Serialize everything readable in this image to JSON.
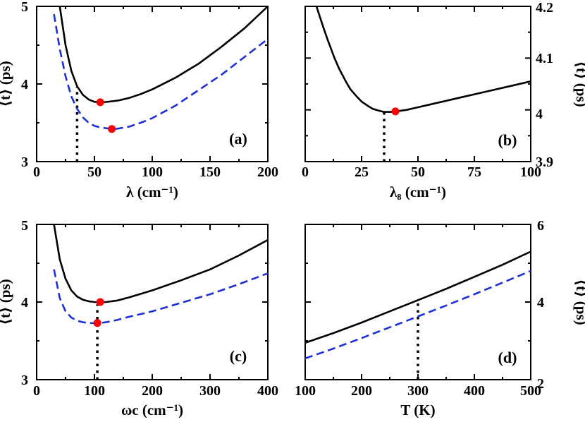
{
  "chart_data": [
    {
      "id": "a",
      "type": "line",
      "panel_label": "(a)",
      "xlabel": "λ (cm⁻¹)",
      "ylabel": "⟨t⟩ (ps)",
      "xlim": [
        0,
        200
      ],
      "ylim": [
        3,
        5
      ],
      "y_axis_side": "left",
      "x_ticks": [
        0,
        50,
        100,
        150,
        200
      ],
      "y_ticks": [
        3,
        4,
        5
      ],
      "x_tick_labels": [
        "0",
        "50",
        "100",
        "150",
        "200"
      ],
      "y_tick_labels": [
        "3",
        "4",
        "5"
      ],
      "series": [
        {
          "name": "solid",
          "color": "#000000",
          "style": "solid",
          "x": [
            20,
            25,
            30,
            35,
            40,
            45,
            50,
            55,
            60,
            70,
            80,
            90,
            100,
            120,
            140,
            160,
            180,
            200
          ],
          "y": [
            5.0,
            4.5,
            4.17,
            3.97,
            3.86,
            3.8,
            3.77,
            3.765,
            3.768,
            3.785,
            3.82,
            3.87,
            3.93,
            4.08,
            4.26,
            4.48,
            4.72,
            5.0
          ]
        },
        {
          "name": "dashed",
          "color": "#1f2fd6",
          "style": "dashed",
          "x": [
            15,
            20,
            25,
            30,
            35,
            40,
            45,
            50,
            55,
            60,
            65,
            70,
            80,
            90,
            100,
            120,
            140,
            160,
            180,
            200
          ],
          "y": [
            4.9,
            4.45,
            4.1,
            3.84,
            3.68,
            3.57,
            3.5,
            3.46,
            3.44,
            3.43,
            3.42,
            3.425,
            3.45,
            3.5,
            3.56,
            3.72,
            3.92,
            4.12,
            4.35,
            4.58
          ]
        }
      ],
      "markers": [
        {
          "x": 55,
          "y": 3.765,
          "color": "#ff0000"
        },
        {
          "x": 65,
          "y": 3.42,
          "color": "#ff0000"
        }
      ],
      "vlines": [
        {
          "x": 35,
          "y_from": 3.0,
          "y_to": 3.96
        }
      ]
    },
    {
      "id": "b",
      "type": "line",
      "panel_label": "(b)",
      "xlabel": "λ₈ (cm⁻¹)",
      "ylabel": "⟨t⟩ (ps)",
      "xlim": [
        0,
        100
      ],
      "ylim": [
        3.9,
        4.2
      ],
      "y_axis_side": "right",
      "x_ticks": [
        0,
        25,
        50,
        75,
        100
      ],
      "y_ticks": [
        3.9,
        4.0,
        4.1,
        4.2
      ],
      "x_tick_labels": [
        "0",
        "25",
        "50",
        "75",
        "100"
      ],
      "y_tick_labels": [
        "3.9",
        "4",
        "4.1",
        "4.2"
      ],
      "series": [
        {
          "name": "solid",
          "color": "#000000",
          "style": "solid",
          "x": [
            5,
            8,
            10,
            13,
            15,
            18,
            20,
            23,
            25,
            28,
            30,
            33,
            35,
            38,
            40,
            45,
            50,
            60,
            70,
            80,
            90,
            100
          ],
          "y": [
            4.2,
            4.16,
            4.135,
            4.1,
            4.08,
            4.055,
            4.04,
            4.025,
            4.016,
            4.007,
            4.002,
            3.998,
            3.996,
            3.996,
            3.997,
            4.0,
            4.005,
            4.015,
            4.025,
            4.035,
            4.045,
            4.055
          ]
        }
      ],
      "markers": [
        {
          "x": 40,
          "y": 3.997,
          "color": "#ff0000"
        }
      ],
      "vlines": [
        {
          "x": 35,
          "y_from": 3.9,
          "y_to": 3.995
        }
      ]
    },
    {
      "id": "c",
      "type": "line",
      "panel_label": "(c)",
      "xlabel": "ωc (cm⁻¹)",
      "ylabel": "⟨t⟩ (ps)",
      "xlim": [
        0,
        400
      ],
      "ylim": [
        3,
        5
      ],
      "y_axis_side": "left",
      "x_ticks": [
        0,
        100,
        200,
        300,
        400
      ],
      "y_ticks": [
        3,
        4,
        5
      ],
      "x_tick_labels": [
        "0",
        "100",
        "200",
        "300",
        "400"
      ],
      "y_tick_labels": [
        "3",
        "4",
        "5"
      ],
      "series": [
        {
          "name": "solid",
          "color": "#000000",
          "style": "solid",
          "x": [
            30,
            40,
            50,
            60,
            70,
            80,
            90,
            100,
            110,
            120,
            140,
            160,
            200,
            250,
            300,
            350,
            400
          ],
          "y": [
            5.0,
            4.55,
            4.3,
            4.15,
            4.07,
            4.03,
            4.01,
            4.0,
            3.995,
            4.0,
            4.02,
            4.06,
            4.15,
            4.28,
            4.42,
            4.6,
            4.8
          ]
        },
        {
          "name": "dashed",
          "color": "#1f2fd6",
          "style": "dashed",
          "x": [
            30,
            40,
            50,
            60,
            70,
            80,
            90,
            100,
            110,
            120,
            140,
            160,
            200,
            250,
            300,
            350,
            400
          ],
          "y": [
            4.42,
            4.05,
            3.88,
            3.8,
            3.76,
            3.74,
            3.73,
            3.728,
            3.73,
            3.74,
            3.77,
            3.81,
            3.88,
            3.99,
            4.1,
            4.23,
            4.37
          ]
        }
      ],
      "markers": [
        {
          "x": 110,
          "y": 4.0,
          "color": "#ff0000"
        },
        {
          "x": 105,
          "y": 3.73,
          "color": "#ff0000"
        }
      ],
      "vlines": [
        {
          "x": 105,
          "y_from": 3.0,
          "y_to": 3.97
        }
      ]
    },
    {
      "id": "d",
      "type": "line",
      "panel_label": "(d)",
      "xlabel": "T (K)",
      "ylabel": "⟨t⟩ (ps)",
      "xlim": [
        100,
        500
      ],
      "ylim": [
        2,
        6
      ],
      "y_axis_side": "right",
      "x_ticks": [
        100,
        200,
        300,
        400,
        500
      ],
      "y_ticks": [
        2,
        4,
        6
      ],
      "x_tick_labels": [
        "100",
        "200",
        "300",
        "400",
        "500"
      ],
      "y_tick_labels": [
        "2",
        "4",
        "6"
      ],
      "series": [
        {
          "name": "solid",
          "color": "#000000",
          "style": "solid",
          "x": [
            100,
            150,
            200,
            250,
            300,
            350,
            400,
            450,
            500
          ],
          "y": [
            2.95,
            3.2,
            3.47,
            3.76,
            4.05,
            4.34,
            4.65,
            4.96,
            5.3
          ]
        },
        {
          "name": "dashed",
          "color": "#1f2fd6",
          "style": "dashed",
          "x": [
            100,
            150,
            200,
            250,
            300,
            350,
            400,
            450,
            500
          ],
          "y": [
            2.55,
            2.8,
            3.07,
            3.35,
            3.63,
            3.91,
            4.2,
            4.5,
            4.8
          ]
        }
      ],
      "markers": [],
      "vlines": [
        {
          "x": 300,
          "y_from": 2.0,
          "y_to": 4.02
        }
      ]
    }
  ]
}
